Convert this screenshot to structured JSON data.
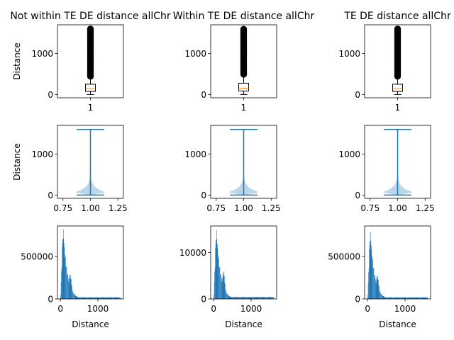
{
  "colors": {
    "accent": "#1f77b4",
    "violin_fill": "#1f77b4",
    "median": "#ff7f0e",
    "outlier": "#000000",
    "background": "#ffffff"
  },
  "chart_data": [
    {
      "type": "boxplot",
      "title": "Not within TE DE distance allChr",
      "ylabel": "Distance",
      "xlabel": "",
      "ylim": [
        -80,
        1700
      ],
      "yticks": [
        0,
        1000
      ],
      "xticks": [
        "1"
      ],
      "box": {
        "min": 0,
        "q1": 75,
        "median": 145,
        "q3": 250,
        "whisker_high": 430,
        "outliers_from": 440,
        "outliers_to": 1600
      }
    },
    {
      "type": "boxplot",
      "title": "Within TE DE distance allChr",
      "ylabel": "",
      "xlabel": "",
      "ylim": [
        -80,
        1700
      ],
      "yticks": [
        0,
        1000
      ],
      "xticks": [
        "1"
      ],
      "box": {
        "min": 0,
        "q1": 85,
        "median": 155,
        "q3": 275,
        "whisker_high": 480,
        "outliers_from": 490,
        "outliers_to": 1600
      }
    },
    {
      "type": "boxplot",
      "title": "TE DE distance allChr",
      "ylabel": "",
      "xlabel": "",
      "ylim": [
        -80,
        1700
      ],
      "yticks": [
        0,
        1000
      ],
      "xticks": [
        "1"
      ],
      "box": {
        "min": 0,
        "q1": 75,
        "median": 145,
        "q3": 250,
        "whisker_high": 430,
        "outliers_from": 440,
        "outliers_to": 1600
      }
    },
    {
      "type": "violin",
      "title": "",
      "ylabel": "Distance",
      "xlabel": "",
      "ylim": [
        -80,
        1700
      ],
      "xlim": [
        0.7,
        1.3
      ],
      "yticks": [
        0,
        1000
      ],
      "xticks": [
        "0.75",
        "1.00",
        "1.25"
      ],
      "violin": {
        "min": 0,
        "max": 1600,
        "peak": 80,
        "max_halfwidth": 0.13
      }
    },
    {
      "type": "violin",
      "title": "",
      "ylabel": "",
      "xlabel": "",
      "ylim": [
        -80,
        1700
      ],
      "xlim": [
        0.7,
        1.3
      ],
      "yticks": [
        0,
        1000
      ],
      "xticks": [
        "0.75",
        "1.00",
        "1.25"
      ],
      "violin": {
        "min": 0,
        "max": 1600,
        "peak": 80,
        "max_halfwidth": 0.13
      }
    },
    {
      "type": "violin",
      "title": "",
      "ylabel": "",
      "xlabel": "",
      "ylim": [
        -80,
        1700
      ],
      "xlim": [
        0.7,
        1.3
      ],
      "yticks": [
        0,
        1000
      ],
      "xticks": [
        "0.75",
        "1.00",
        "1.25"
      ],
      "violin": {
        "min": 0,
        "max": 1600,
        "peak": 80,
        "max_halfwidth": 0.13
      }
    },
    {
      "type": "histogram",
      "title": "",
      "ylabel": "",
      "xlabel": "Distance",
      "xlim": [
        -80,
        1680
      ],
      "ylim": [
        0,
        860000
      ],
      "xticks": [
        0,
        1000
      ],
      "yticks": [
        0,
        500000
      ],
      "hist": {
        "peak_x": 80,
        "peak_count": 820000,
        "secondary_x": 270,
        "secondary_count": 330000,
        "tail_level": 0.025
      }
    },
    {
      "type": "histogram",
      "title": "",
      "ylabel": "",
      "xlabel": "Distance",
      "xlim": [
        -80,
        1680
      ],
      "ylim": [
        0,
        15700
      ],
      "xticks": [
        0,
        1000
      ],
      "yticks": [
        0,
        10000
      ],
      "hist": {
        "peak_x": 80,
        "peak_count": 14800,
        "secondary_x": 270,
        "secondary_count": 7800,
        "tail_level": 0.03
      }
    },
    {
      "type": "histogram",
      "title": "",
      "ylabel": "",
      "xlabel": "Distance",
      "xlim": [
        -80,
        1680
      ],
      "ylim": [
        0,
        860000
      ],
      "xticks": [
        0,
        1000
      ],
      "yticks": [
        0,
        500000
      ],
      "hist": {
        "peak_x": 80,
        "peak_count": 790000,
        "secondary_x": 270,
        "secondary_count": 320000,
        "tail_level": 0.025
      }
    }
  ]
}
